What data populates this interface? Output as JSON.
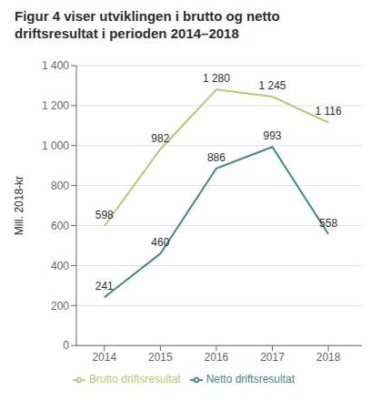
{
  "chart_data": {
    "type": "line",
    "title": "Figur 4 viser utviklingen i brutto og netto\ndriftsresultat i perioden 2014–2018",
    "x": [
      2014,
      2015,
      2016,
      2017,
      2018
    ],
    "series": [
      {
        "name": "Brutto driftsresultat",
        "color": "#b5c96e",
        "values": [
          598,
          982,
          1280,
          1245,
          1116
        ],
        "value_labels": [
          "598",
          "982",
          "1 280",
          "1 245",
          "1 116"
        ]
      },
      {
        "name": "Netto driftsresultat",
        "color": "#3a8a84",
        "values": [
          241,
          460,
          886,
          993,
          558
        ],
        "value_labels": [
          "241",
          "460",
          "886",
          "993",
          "558"
        ]
      }
    ],
    "ylabel": "Mill. 2018-kr",
    "xlim": [
      2013.5,
      2018.6
    ],
    "xticks": [
      2014,
      2015,
      2016,
      2017,
      2018
    ],
    "ylim": [
      0,
      1400
    ],
    "yticks": [
      0,
      200,
      400,
      600,
      800,
      {
        "value": 1000,
        "label": "1 000"
      },
      {
        "value": 1200,
        "label": "1 200"
      },
      {
        "value": 1400,
        "label": "1 400"
      }
    ],
    "grid": true,
    "legend": "bottom",
    "data_labels": true
  }
}
